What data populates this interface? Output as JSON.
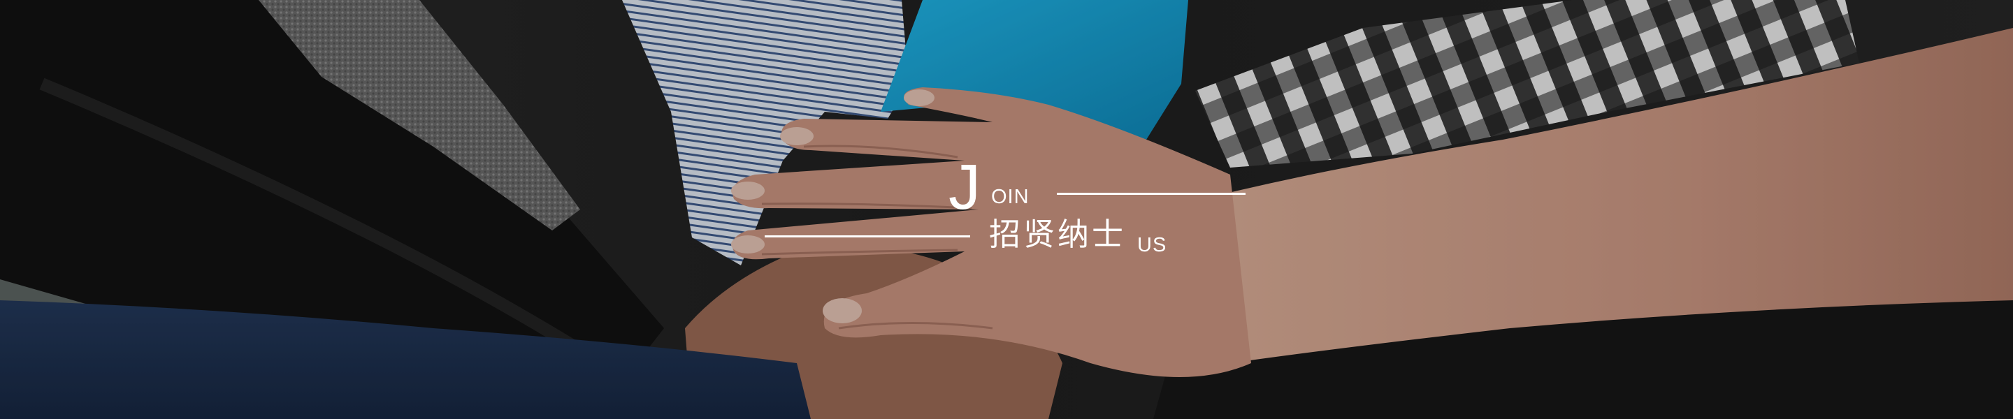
{
  "banner": {
    "title_initial": "J",
    "title_rest": "OIN",
    "title_chinese": "招贤纳士",
    "title_suffix": "US",
    "image_subject": "hands-stacked-teamwork-photo"
  },
  "colors": {
    "text": "#ffffff",
    "line": "#ffffff",
    "navy_sleeve": "#1c2c48",
    "blue_shirt": "#16a2d4",
    "skin": "#c49380"
  }
}
